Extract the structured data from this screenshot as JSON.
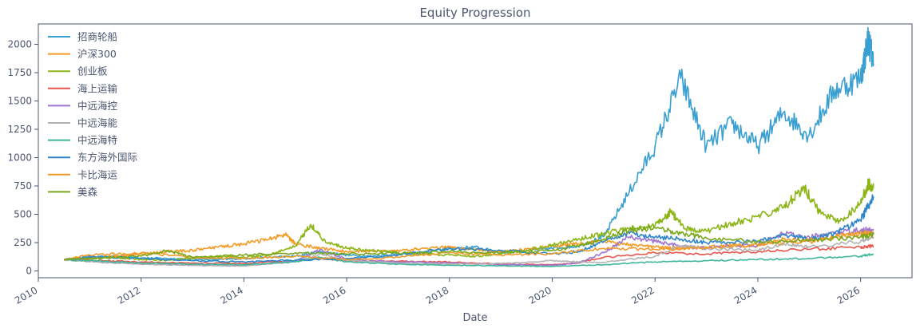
{
  "chart_data": {
    "type": "line",
    "title": "Equity Progression",
    "xlabel": "Date",
    "ylabel": "",
    "xlim": [
      2010.0,
      2027.0
    ],
    "ylim": [
      -60,
      2180
    ],
    "x_ticks": [
      2010,
      2012,
      2014,
      2016,
      2018,
      2020,
      2022,
      2024,
      2026
    ],
    "x_tick_labels": [
      "2010",
      "2012",
      "2014",
      "2016",
      "2018",
      "2020",
      "2022",
      "2024",
      "2026"
    ],
    "y_ticks": [
      0,
      250,
      500,
      750,
      1000,
      1250,
      1500,
      1750,
      2000
    ],
    "y_tick_labels": [
      "0",
      "250",
      "500",
      "750",
      "1000",
      "1250",
      "1500",
      "1750",
      "2000"
    ],
    "grid": false,
    "legend_position": "top-left",
    "series": [
      {
        "name": "招商轮船",
        "color": "#3a9fd1",
        "x": [
          2010.5,
          2011.0,
          2011.5,
          2012.0,
          2012.5,
          2013.0,
          2013.5,
          2014.0,
          2014.5,
          2015.0,
          2015.5,
          2016.0,
          2016.5,
          2017.0,
          2017.5,
          2018.0,
          2018.5,
          2019.0,
          2019.5,
          2020.0,
          2020.5,
          2021.0,
          2021.5,
          2022.0,
          2022.5,
          2023.0,
          2023.5,
          2024.0,
          2024.5,
          2025.0,
          2025.5,
          2026.0,
          2026.15,
          2026.25
        ],
        "values": [
          100,
          120,
          130,
          115,
          110,
          105,
          100,
          110,
          120,
          130,
          170,
          140,
          130,
          150,
          160,
          200,
          210,
          160,
          180,
          200,
          220,
          300,
          700,
          1100,
          1700,
          1100,
          1300,
          1100,
          1400,
          1200,
          1600,
          1700,
          2050,
          1830
        ]
      },
      {
        "name": "沪深300",
        "color": "#f59a23",
        "x": [
          2010.5,
          2011.0,
          2011.5,
          2012.0,
          2012.5,
          2013.0,
          2013.5,
          2014.0,
          2014.5,
          2014.8,
          2015.0,
          2015.5,
          2016.0,
          2016.5,
          2017.0,
          2017.5,
          2018.0,
          2018.5,
          2019.0,
          2019.5,
          2020.0,
          2020.5,
          2021.0,
          2021.5,
          2022.0,
          2022.5,
          2023.0,
          2023.5,
          2024.0,
          2024.5,
          2025.0,
          2025.5,
          2026.0,
          2026.25
        ],
        "values": [
          100,
          110,
          130,
          150,
          170,
          180,
          210,
          240,
          280,
          320,
          240,
          200,
          170,
          175,
          180,
          200,
          210,
          190,
          170,
          190,
          220,
          240,
          260,
          230,
          210,
          200,
          210,
          230,
          220,
          280,
          260,
          300,
          330,
          340
        ]
      },
      {
        "name": "创业板",
        "color": "#8db518",
        "x": [
          2010.5,
          2011.0,
          2011.5,
          2012.0,
          2012.5,
          2013.0,
          2013.5,
          2014.0,
          2014.5,
          2015.0,
          2015.3,
          2015.6,
          2016.0,
          2016.5,
          2017.0,
          2017.5,
          2018.0,
          2018.5,
          2019.0,
          2019.5,
          2020.0,
          2020.5,
          2021.0,
          2021.5,
          2022.0,
          2022.3,
          2022.6,
          2023.0,
          2023.5,
          2024.0,
          2024.5,
          2024.9,
          2025.2,
          2025.6,
          2026.0,
          2026.15,
          2026.25
        ],
        "values": [
          100,
          110,
          115,
          100,
          95,
          110,
          130,
          120,
          140,
          220,
          410,
          250,
          200,
          180,
          160,
          150,
          140,
          130,
          150,
          180,
          230,
          280,
          330,
          370,
          400,
          520,
          370,
          350,
          420,
          480,
          560,
          740,
          520,
          440,
          600,
          770,
          730
        ]
      },
      {
        "name": "海上运输",
        "color": "#e9564f",
        "x": [
          2010.5,
          2011.0,
          2012.0,
          2013.0,
          2014.0,
          2015.0,
          2015.5,
          2016.0,
          2017.0,
          2018.0,
          2019.0,
          2020.0,
          2020.5,
          2021.0,
          2022.0,
          2023.0,
          2024.0,
          2025.0,
          2026.0,
          2026.25
        ],
        "values": [
          100,
          95,
          80,
          70,
          65,
          90,
          110,
          90,
          85,
          80,
          60,
          55,
          70,
          120,
          160,
          150,
          170,
          190,
          210,
          220
        ]
      },
      {
        "name": "中远海控",
        "color": "#a075d1",
        "x": [
          2010.5,
          2011.0,
          2012.0,
          2013.0,
          2014.0,
          2015.0,
          2015.5,
          2016.0,
          2017.0,
          2018.0,
          2019.0,
          2020.0,
          2020.5,
          2021.0,
          2021.5,
          2022.0,
          2022.5,
          2023.0,
          2024.0,
          2024.5,
          2025.0,
          2025.5,
          2026.0,
          2026.25
        ],
        "values": [
          100,
          85,
          60,
          50,
          45,
          90,
          190,
          100,
          80,
          70,
          55,
          50,
          70,
          160,
          300,
          260,
          220,
          200,
          230,
          330,
          300,
          340,
          360,
          370
        ]
      },
      {
        "name": "中远海能",
        "color": "#b3b3b3",
        "x": [
          2010.5,
          2011.0,
          2012.0,
          2013.0,
          2014.0,
          2015.0,
          2015.5,
          2016.0,
          2017.0,
          2018.0,
          2019.0,
          2020.0,
          2020.5,
          2021.0,
          2022.0,
          2022.5,
          2023.0,
          2024.0,
          2024.5,
          2025.0,
          2026.0,
          2026.25
        ],
        "values": [
          100,
          80,
          60,
          50,
          45,
          80,
          150,
          90,
          70,
          60,
          65,
          90,
          80,
          75,
          130,
          220,
          200,
          180,
          240,
          210,
          260,
          300
        ]
      },
      {
        "name": "中远海特",
        "color": "#3fb69a",
        "x": [
          2010.5,
          2011.0,
          2012.0,
          2013.0,
          2014.0,
          2015.0,
          2015.5,
          2016.0,
          2017.0,
          2018.0,
          2019.0,
          2020.0,
          2021.0,
          2022.0,
          2023.0,
          2024.0,
          2025.0,
          2026.0,
          2026.25
        ],
        "values": [
          100,
          90,
          70,
          60,
          55,
          80,
          120,
          80,
          60,
          50,
          45,
          40,
          55,
          80,
          90,
          100,
          110,
          130,
          150
        ]
      },
      {
        "name": "东方海外国际",
        "color": "#2e86c9",
        "x": [
          2010.5,
          2011.0,
          2012.0,
          2013.0,
          2014.0,
          2015.0,
          2016.0,
          2017.0,
          2018.0,
          2019.0,
          2020.0,
          2020.5,
          2021.0,
          2021.5,
          2022.0,
          2022.5,
          2023.0,
          2024.0,
          2024.5,
          2025.0,
          2025.5,
          2026.0,
          2026.25
        ],
        "values": [
          100,
          130,
          110,
          90,
          80,
          95,
          110,
          140,
          200,
          180,
          150,
          170,
          260,
          330,
          300,
          280,
          250,
          260,
          320,
          280,
          330,
          450,
          660
        ]
      },
      {
        "name": "卡比海运",
        "color": "#f09a2a",
        "x": [
          2010.5,
          2011.0,
          2012.0,
          2013.0,
          2014.0,
          2015.0,
          2016.0,
          2017.0,
          2018.0,
          2019.0,
          2020.0,
          2021.0,
          2022.0,
          2023.0,
          2024.0,
          2025.0,
          2026.0,
          2026.25
        ],
        "values": [
          100,
          140,
          160,
          120,
          110,
          130,
          100,
          120,
          160,
          140,
          150,
          200,
          190,
          200,
          230,
          270,
          330,
          340
        ]
      },
      {
        "name": "美森",
        "color": "#7aa81c",
        "x": [
          2010.5,
          2011.0,
          2012.0,
          2012.5,
          2013.0,
          2014.0,
          2015.0,
          2016.0,
          2017.0,
          2018.0,
          2019.0,
          2020.0,
          2020.5,
          2021.0,
          2021.5,
          2022.0,
          2022.5,
          2023.0,
          2024.0,
          2025.0,
          2026.0,
          2026.25
        ],
        "values": [
          100,
          110,
          130,
          180,
          120,
          140,
          160,
          150,
          160,
          170,
          160,
          180,
          220,
          280,
          360,
          380,
          330,
          290,
          260,
          270,
          300,
          320
        ]
      }
    ]
  }
}
